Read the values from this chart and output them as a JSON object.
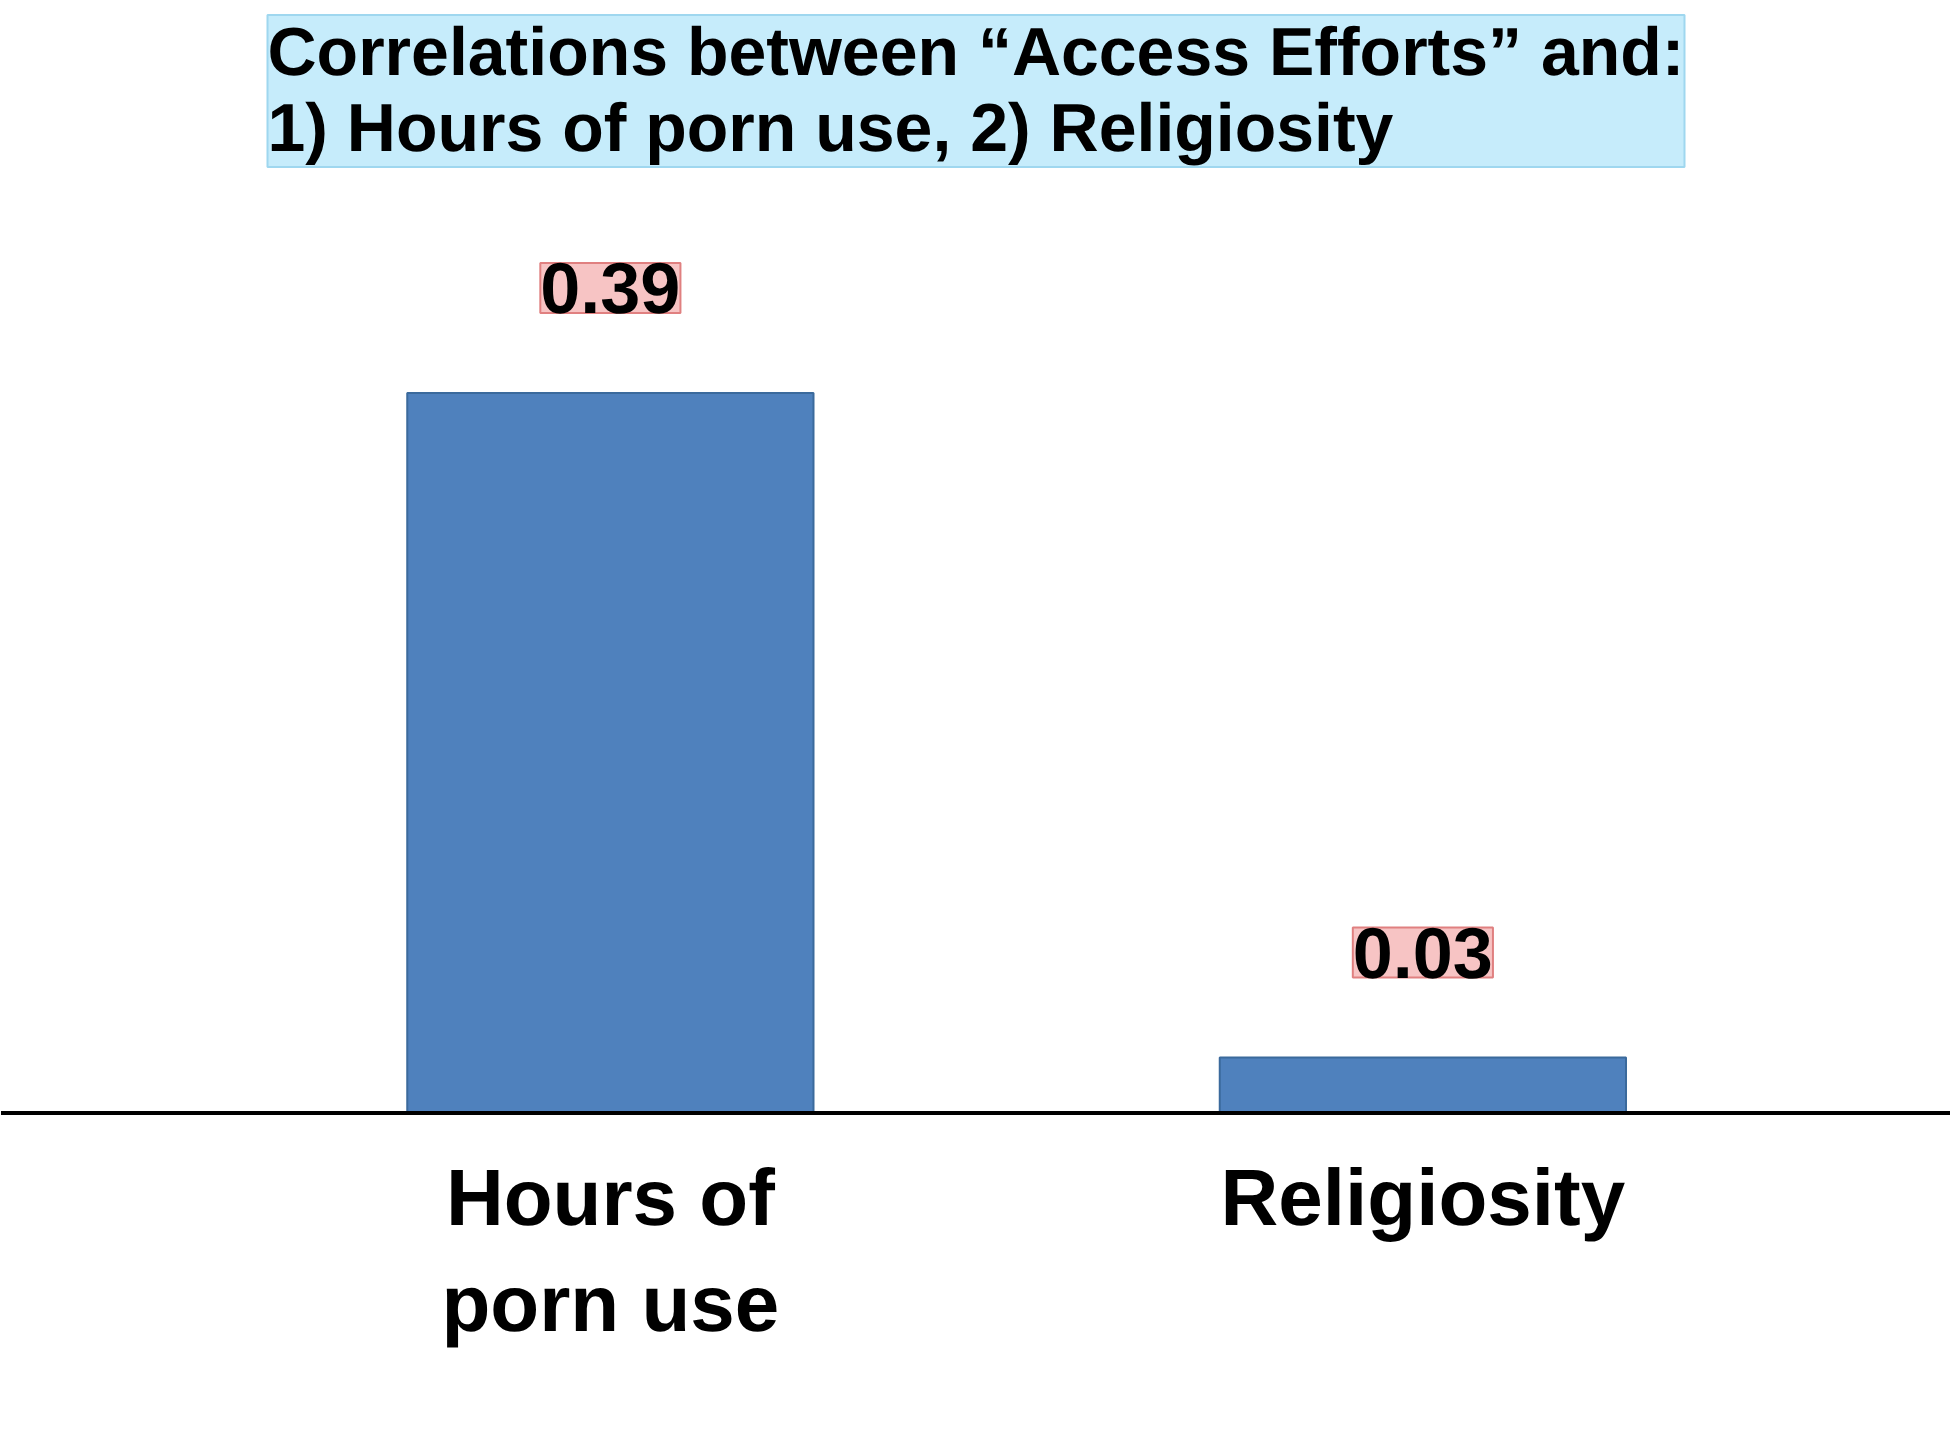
{
  "chart_data": {
    "type": "bar",
    "title": "Correlations between “Access Efforts” and:\n1) Hours of porn use, 2) Religiosity",
    "categories": [
      "Hours of porn use",
      "Religiosity"
    ],
    "values": [
      0.39,
      0.03
    ],
    "color": "#4f81bd",
    "data_labels": true,
    "grid": false
  }
}
